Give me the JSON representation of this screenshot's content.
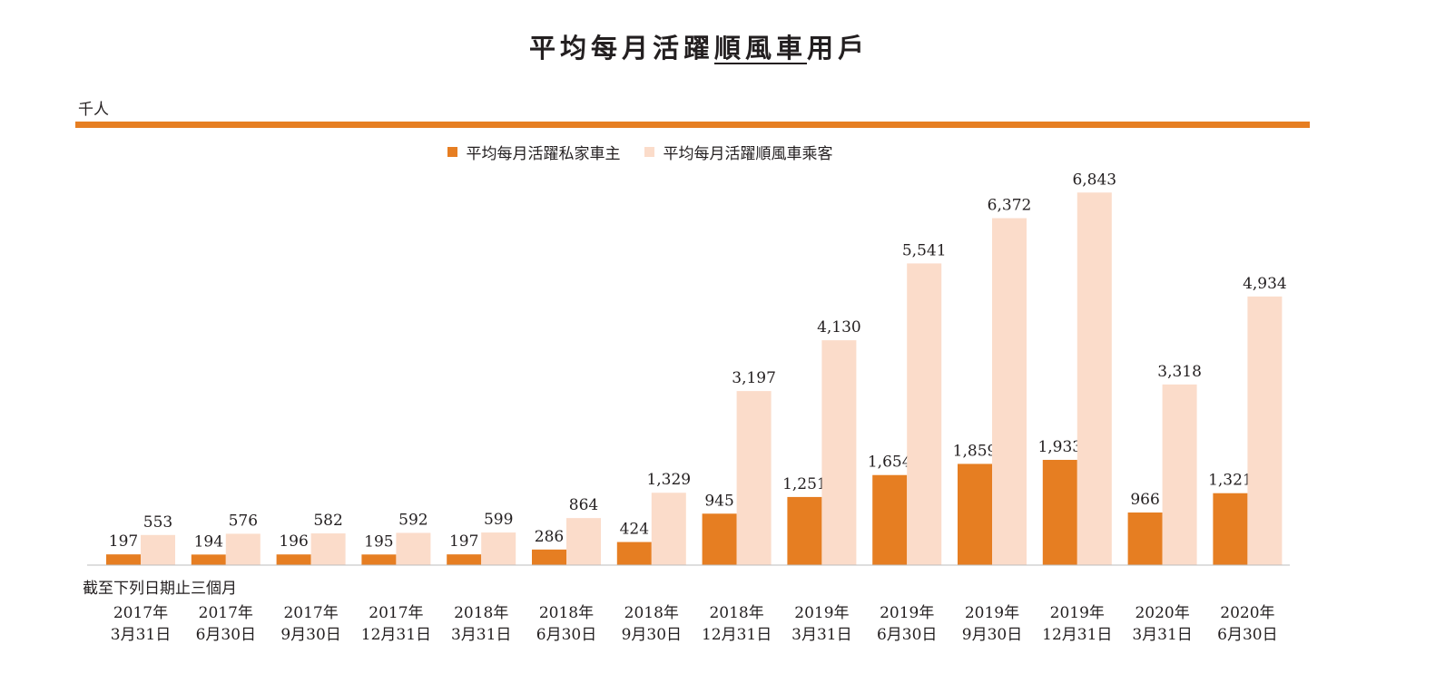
{
  "title": {
    "pre": "平均每月活躍",
    "underlined": "順風車",
    "post": "用戶"
  },
  "unit_label": "千人",
  "x_axis_title": "截至下列日期止三個月",
  "colors": {
    "driver": "#e67e22",
    "passenger": "#fbdcca",
    "rule": "#e67e22",
    "axis": "#bdbdbd"
  },
  "chart_data": {
    "type": "bar",
    "title": "平均每月活躍順風車用戶",
    "ylabel": "千人",
    "xlabel": "截至下列日期止三個月",
    "legend_position": "top-center",
    "ylim": [
      0,
      8000
    ],
    "categories": [
      [
        "2017年",
        "3月31日"
      ],
      [
        "2017年",
        "6月30日"
      ],
      [
        "2017年",
        "9月30日"
      ],
      [
        "2017年",
        "12月31日"
      ],
      [
        "2018年",
        "3月31日"
      ],
      [
        "2018年",
        "6月30日"
      ],
      [
        "2018年",
        "9月30日"
      ],
      [
        "2018年",
        "12月31日"
      ],
      [
        "2019年",
        "3月31日"
      ],
      [
        "2019年",
        "6月30日"
      ],
      [
        "2019年",
        "9月30日"
      ],
      [
        "2019年",
        "12月31日"
      ],
      [
        "2020年",
        "3月31日"
      ],
      [
        "2020年",
        "6月30日"
      ]
    ],
    "series": [
      {
        "name": "平均每月活躍私家車主",
        "color_key": "driver",
        "values": [
          197,
          194,
          196,
          195,
          197,
          286,
          424,
          945,
          1251,
          1654,
          1859,
          1933,
          966,
          1321
        ],
        "labels": [
          "197",
          "194",
          "196",
          "195",
          "197",
          "286",
          "424",
          "945",
          "1,251",
          "1,654",
          "1,859",
          "1,933",
          "966",
          "1,321"
        ]
      },
      {
        "name": "平均每月活躍順風車乘客",
        "color_key": "passenger",
        "values": [
          553,
          576,
          582,
          592,
          599,
          864,
          1329,
          3197,
          4130,
          5541,
          6372,
          6843,
          3318,
          4934
        ],
        "labels": [
          "553",
          "576",
          "582",
          "592",
          "599",
          "864",
          "1,329",
          "3,197",
          "4,130",
          "5,541",
          "6,372",
          "6,843",
          "3,318",
          "4,934"
        ]
      }
    ]
  }
}
